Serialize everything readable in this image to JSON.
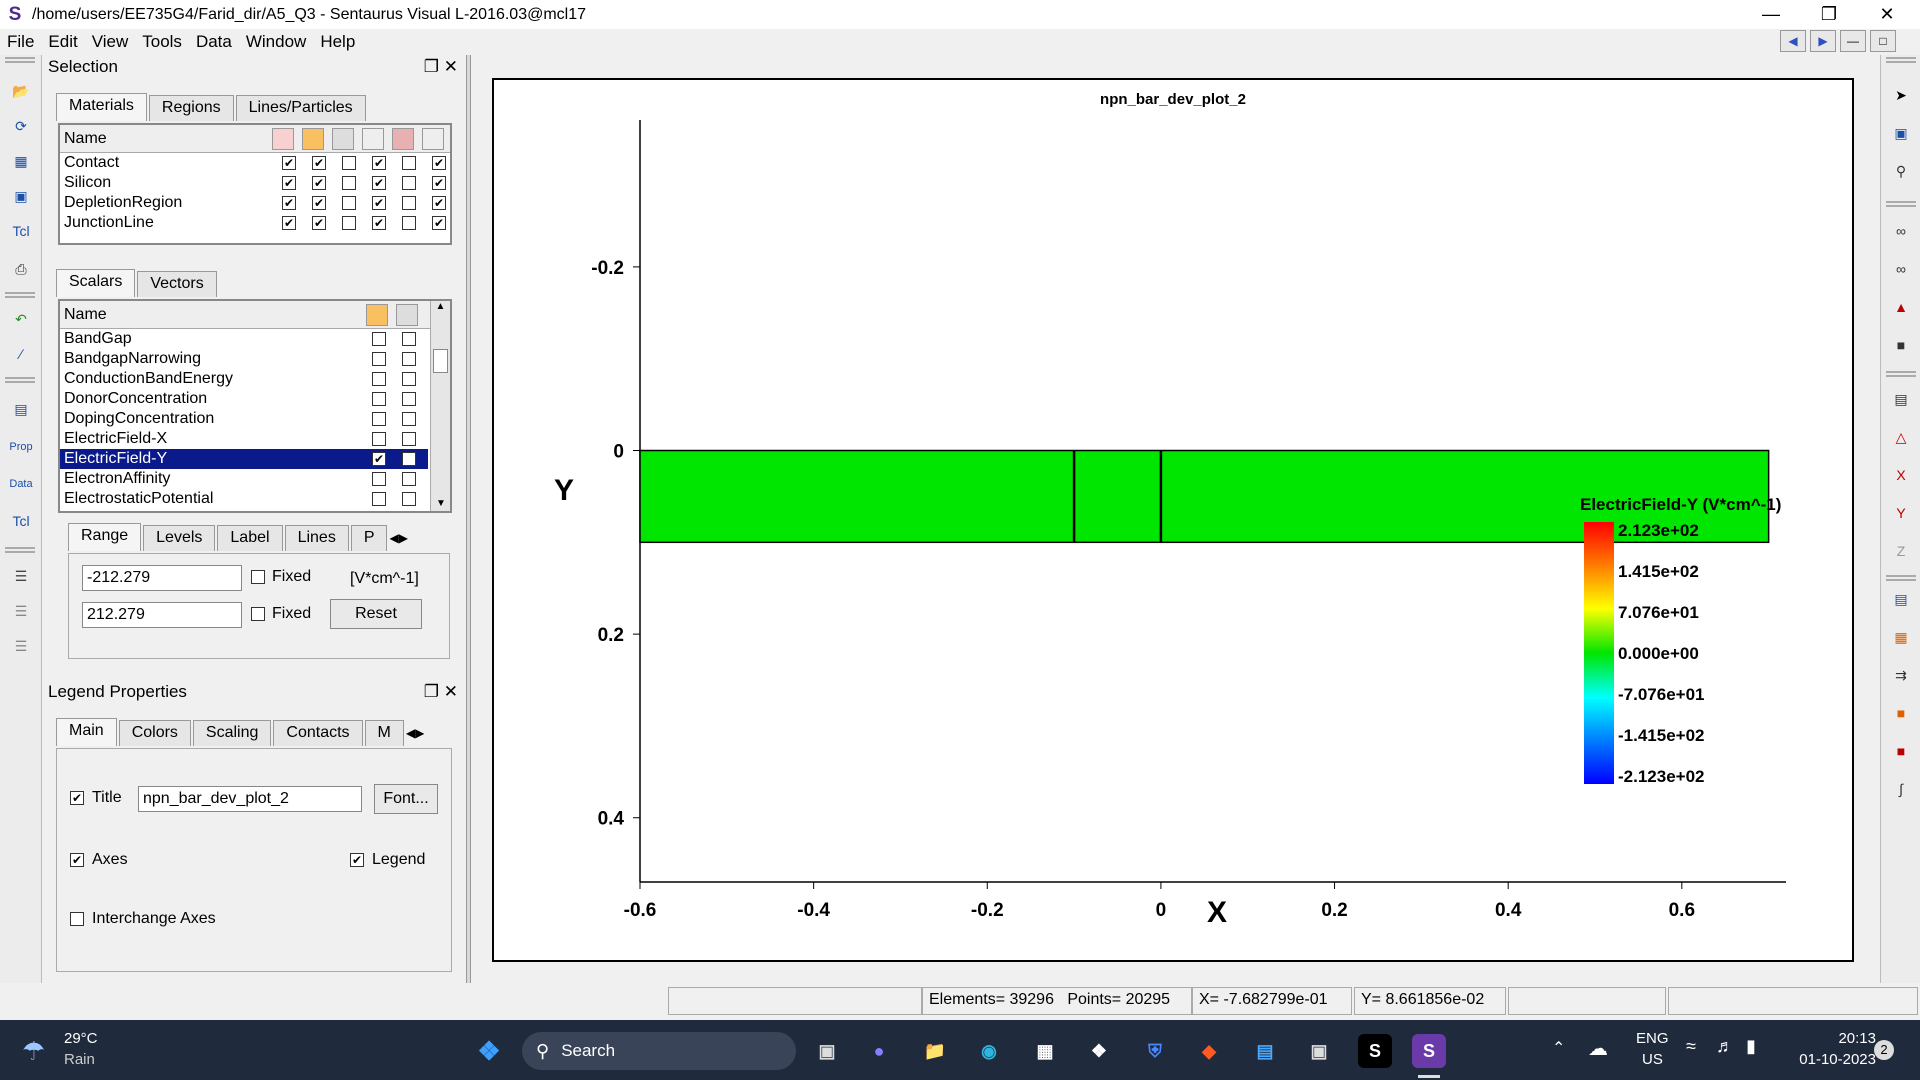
{
  "window": {
    "title": "/home/users/EE735G4/Farid_dir/A5_Q3 - Sentaurus Visual L-2016.03@mcl17"
  },
  "menu": [
    "File",
    "Edit",
    "View",
    "Tools",
    "Data",
    "Window",
    "Help"
  ],
  "selection": {
    "title": "Selection",
    "tabs": [
      "Materials",
      "Regions",
      "Lines/Particles"
    ],
    "name_header": "Name",
    "materials": [
      {
        "name": "Contact",
        "checks": [
          true,
          true,
          false,
          true,
          false,
          true
        ]
      },
      {
        "name": "Silicon",
        "checks": [
          true,
          true,
          false,
          true,
          false,
          true
        ]
      },
      {
        "name": "DepletionRegion",
        "checks": [
          true,
          true,
          false,
          true,
          false,
          true
        ]
      },
      {
        "name": "JunctionLine",
        "checks": [
          true,
          true,
          false,
          true,
          false,
          true
        ]
      }
    ],
    "scalar_tabs": [
      "Scalars",
      "Vectors"
    ],
    "scalars": [
      {
        "name": "BandGap",
        "checks": [
          false,
          false
        ]
      },
      {
        "name": "BandgapNarrowing",
        "checks": [
          false,
          false
        ]
      },
      {
        "name": "ConductionBandEnergy",
        "checks": [
          false,
          false
        ]
      },
      {
        "name": "DonorConcentration",
        "checks": [
          false,
          false
        ]
      },
      {
        "name": "DopingConcentration",
        "checks": [
          false,
          false
        ]
      },
      {
        "name": "ElectricField-X",
        "checks": [
          false,
          false
        ]
      },
      {
        "name": "ElectricField-Y",
        "checks": [
          true,
          false
        ],
        "selected": true
      },
      {
        "name": "ElectronAffinity",
        "checks": [
          false,
          false
        ]
      },
      {
        "name": "ElectrostaticPotential",
        "checks": [
          false,
          false
        ]
      }
    ],
    "range_tabs": [
      "Range",
      "Levels",
      "Label",
      "Lines",
      "P"
    ],
    "min_value": "-212.279",
    "max_value": "212.279",
    "fixed_label": "Fixed",
    "unit": "[V*cm^-1]",
    "reset_label": "Reset"
  },
  "legend_props": {
    "title": "Legend Properties",
    "tabs": [
      "Main",
      "Colors",
      "Scaling",
      "Contacts",
      "M"
    ],
    "title_label": "Title",
    "title_value": "npn_bar_dev_plot_2",
    "font_label": "Font...",
    "axes_label": "Axes",
    "legend_label": "Legend",
    "interchange_label": "Interchange Axes",
    "title_checked": true,
    "axes_checked": true,
    "legend_checked": true,
    "interchange_checked": false
  },
  "plot": {
    "title": "npn_bar_dev_plot_2",
    "xlabel": "X",
    "ylabel": "Y",
    "xticks": [
      "-0.6",
      "-0.4",
      "-0.2",
      "0",
      "0.2",
      "0.4",
      "0.6"
    ],
    "yticks": [
      "-0.2",
      "0",
      "0.2",
      "0.4"
    ],
    "legend_title": "ElectricField-Y (V*cm^-1)",
    "legend_values": [
      "2.123e+02",
      "1.415e+02",
      "7.076e+01",
      "0.000e+00",
      "-7.076e+01",
      "-1.415e+02",
      "-2.123e+02"
    ],
    "field_color": "#00e600"
  },
  "chart_data": {
    "type": "heatmap",
    "title": "npn_bar_dev_plot_2",
    "xlabel": "X",
    "ylabel": "Y",
    "xlim": [
      -0.6,
      0.72
    ],
    "ylim": [
      -0.36,
      0.47
    ],
    "device_x": [
      -0.6,
      0.7
    ],
    "device_y": [
      0,
      0.1
    ],
    "junction_lines_x": [
      -0.1,
      0.0
    ],
    "legend_title": "ElectricField-Y (V*cm^-1)",
    "colorbar_range": [
      -212.3,
      212.3
    ]
  },
  "status": {
    "elements": "Elements= 39296",
    "points": "Points= 20295",
    "x": "X= -7.682799e-01",
    "y": "Y= 8.661856e-02"
  },
  "taskbar": {
    "temp": "29°C",
    "weather": "Rain",
    "search": "Search",
    "lang1": "ENG",
    "lang2": "US",
    "time": "20:13",
    "date": "01-10-2023",
    "badge": "2"
  }
}
